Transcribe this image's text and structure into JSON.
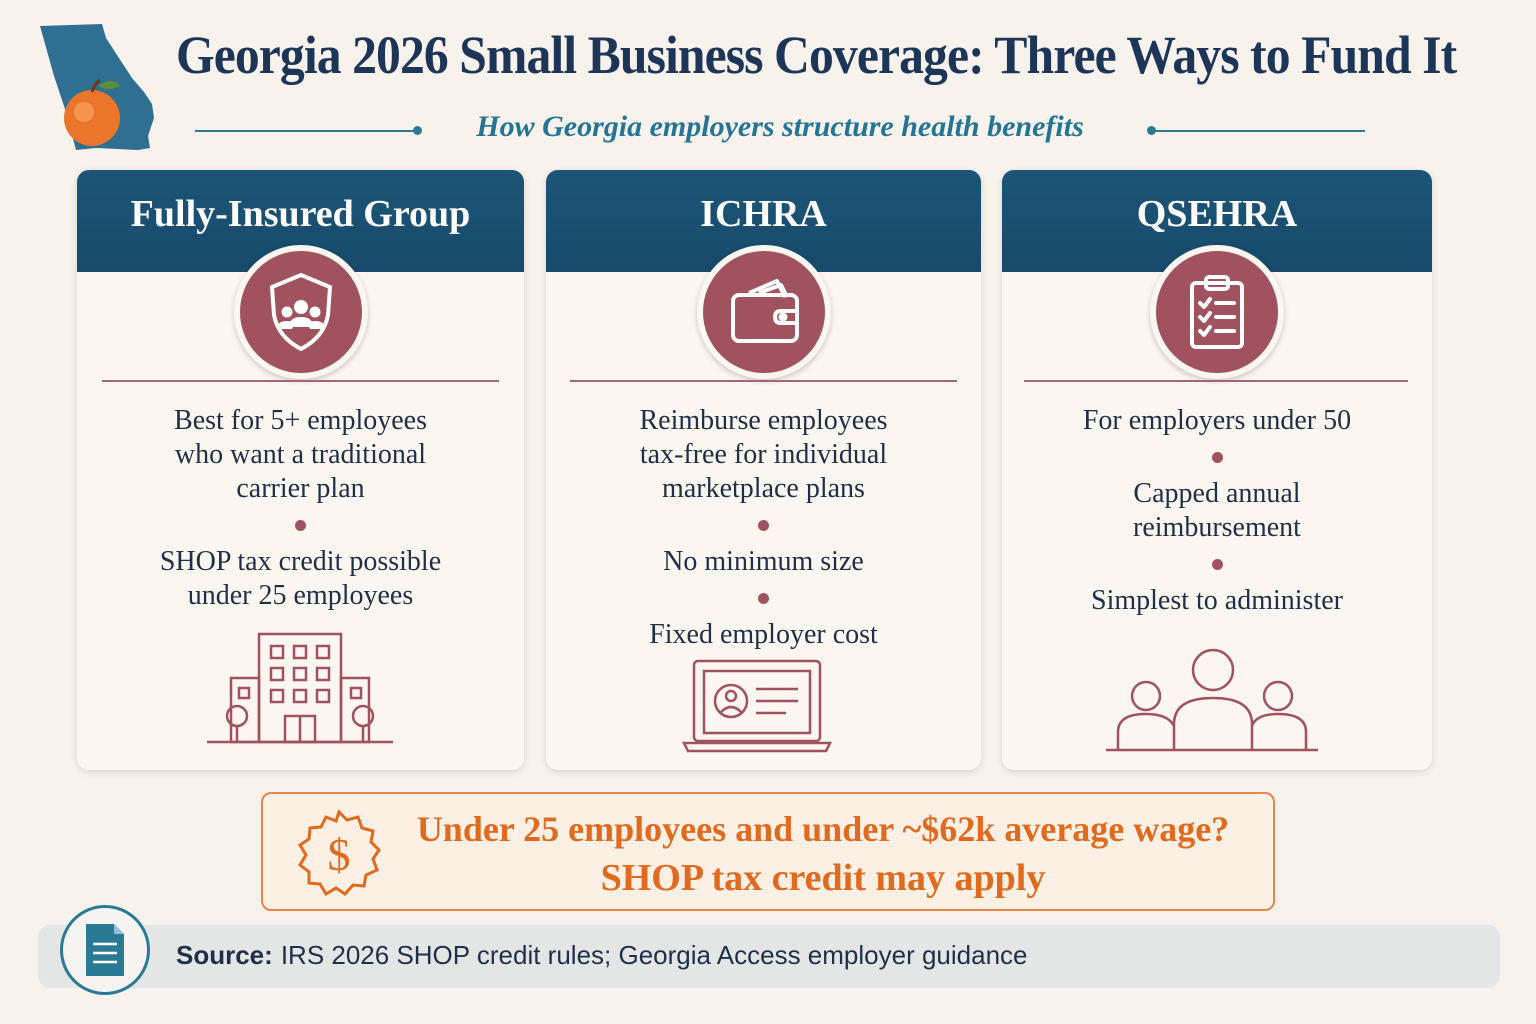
{
  "header": {
    "title": "Georgia 2026 Small Business Coverage: Three Ways to Fund It",
    "subtitle": "How Georgia employers structure health benefits",
    "map_icon": "georgia-map-peach-icon"
  },
  "cards": [
    {
      "title": "Fully-Insured Group",
      "icon": "shield-group-icon",
      "bottom_icon": "office-building-icon",
      "bullets": [
        [
          "Best for 5+ employees",
          "who want a traditional",
          "carrier plan"
        ],
        [
          "SHOP tax credit possible",
          "under 25 employees"
        ]
      ]
    },
    {
      "title": "ICHRA",
      "icon": "wallet-icon",
      "bottom_icon": "laptop-profile-icon",
      "bullets": [
        [
          "Reimburse employees",
          "tax-free for individual",
          "marketplace plans"
        ],
        [
          "No minimum size"
        ],
        [
          "Fixed employer cost"
        ]
      ]
    },
    {
      "title": "QSEHRA",
      "icon": "clipboard-checklist-icon",
      "bottom_icon": "people-group-icon",
      "bullets": [
        [
          "For employers under 50"
        ],
        [
          "Capped annual",
          "reimbursement"
        ],
        [
          "Simplest to administer"
        ]
      ]
    }
  ],
  "callout": {
    "line1": "Under 25 employees and under ~$62k average wage?",
    "line2": "SHOP tax credit may apply",
    "icon": "dollar-seal-icon"
  },
  "source": {
    "label": "Source:",
    "text": "IRS 2026 SHOP credit rules; Georgia Access employer guidance",
    "icon": "document-icon"
  },
  "colors": {
    "navy": "#1d3557",
    "teal": "#247594",
    "card_header": "#1d5577",
    "mauve": "#a0525f",
    "orange": "#e06a1e"
  }
}
